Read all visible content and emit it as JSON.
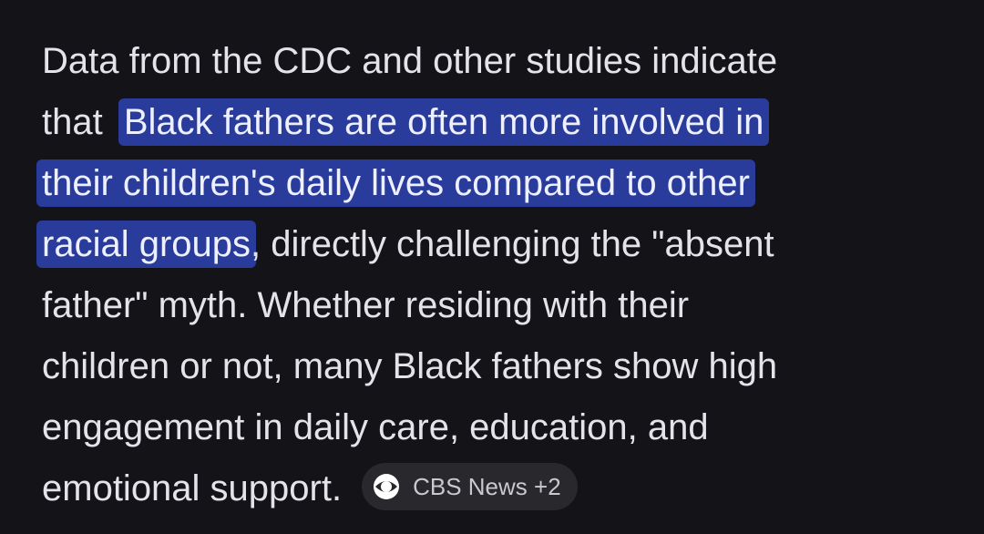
{
  "lines": [
    [
      {
        "text": "Data from the CDC and other studies indicate",
        "highlight": false
      }
    ],
    [
      {
        "text": "that ",
        "highlight": false
      },
      {
        "text": "Black fathers are often more involved in",
        "highlight": true
      }
    ],
    [
      {
        "text": "their children's daily lives compared to other",
        "highlight": true
      }
    ],
    [
      {
        "text": "racial groups",
        "highlight": true
      },
      {
        "text": ", directly challenging the \"absent",
        "highlight": false
      }
    ],
    [
      {
        "text": "father\" myth. Whether residing with their",
        "highlight": false
      }
    ],
    [
      {
        "text": "children or not, many Black fathers show high",
        "highlight": false
      }
    ],
    [
      {
        "text": "engagement in daily care, education, and",
        "highlight": false
      }
    ],
    [
      {
        "text": "emotional support.",
        "highlight": false
      }
    ]
  ],
  "source_chip": {
    "label": "CBS News +2"
  }
}
